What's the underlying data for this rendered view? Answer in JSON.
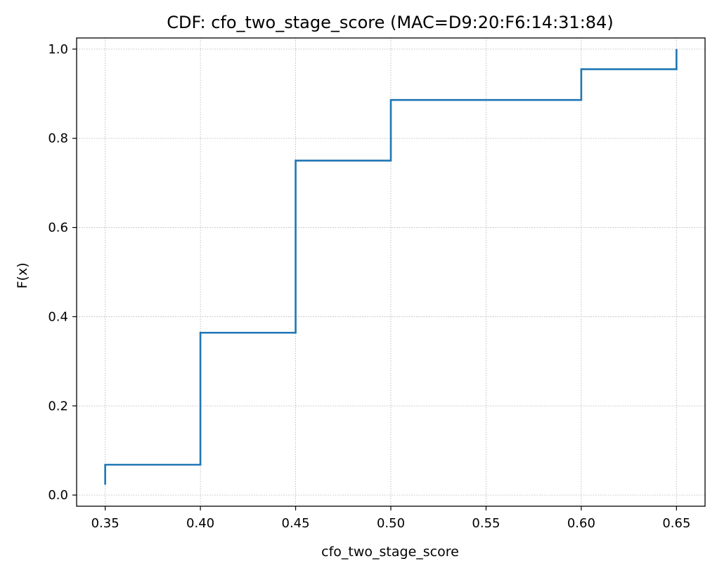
{
  "chart_data": {
    "type": "line",
    "drawstyle": "steps-post",
    "title": "CDF: cfo_two_stage_score (MAC=D9:20:F6:14:31:84)",
    "xlabel": "cfo_two_stage_score",
    "ylabel": "F(x)",
    "xlim": [
      0.335,
      0.665
    ],
    "ylim": [
      -0.025,
      1.025
    ],
    "xticks": [
      0.35,
      0.4,
      0.45,
      0.5,
      0.55,
      0.6,
      0.65
    ],
    "xtick_labels": [
      "0.35",
      "0.40",
      "0.45",
      "0.50",
      "0.55",
      "0.60",
      "0.65"
    ],
    "yticks": [
      0.0,
      0.2,
      0.4,
      0.6,
      0.8,
      1.0
    ],
    "ytick_labels": [
      "0.0",
      "0.2",
      "0.4",
      "0.6",
      "0.8",
      "1.0"
    ],
    "grid": true,
    "grid_style": "dotted",
    "series": [
      {
        "color": "#1f77b4",
        "points": [
          [
            0.35,
            0.023
          ],
          [
            0.35,
            0.068
          ],
          [
            0.4,
            0.068
          ],
          [
            0.4,
            0.364
          ],
          [
            0.45,
            0.364
          ],
          [
            0.45,
            0.75
          ],
          [
            0.5,
            0.75
          ],
          [
            0.5,
            0.886
          ],
          [
            0.6,
            0.886
          ],
          [
            0.6,
            0.955
          ],
          [
            0.65,
            0.955
          ],
          [
            0.65,
            1.0
          ]
        ]
      }
    ]
  }
}
